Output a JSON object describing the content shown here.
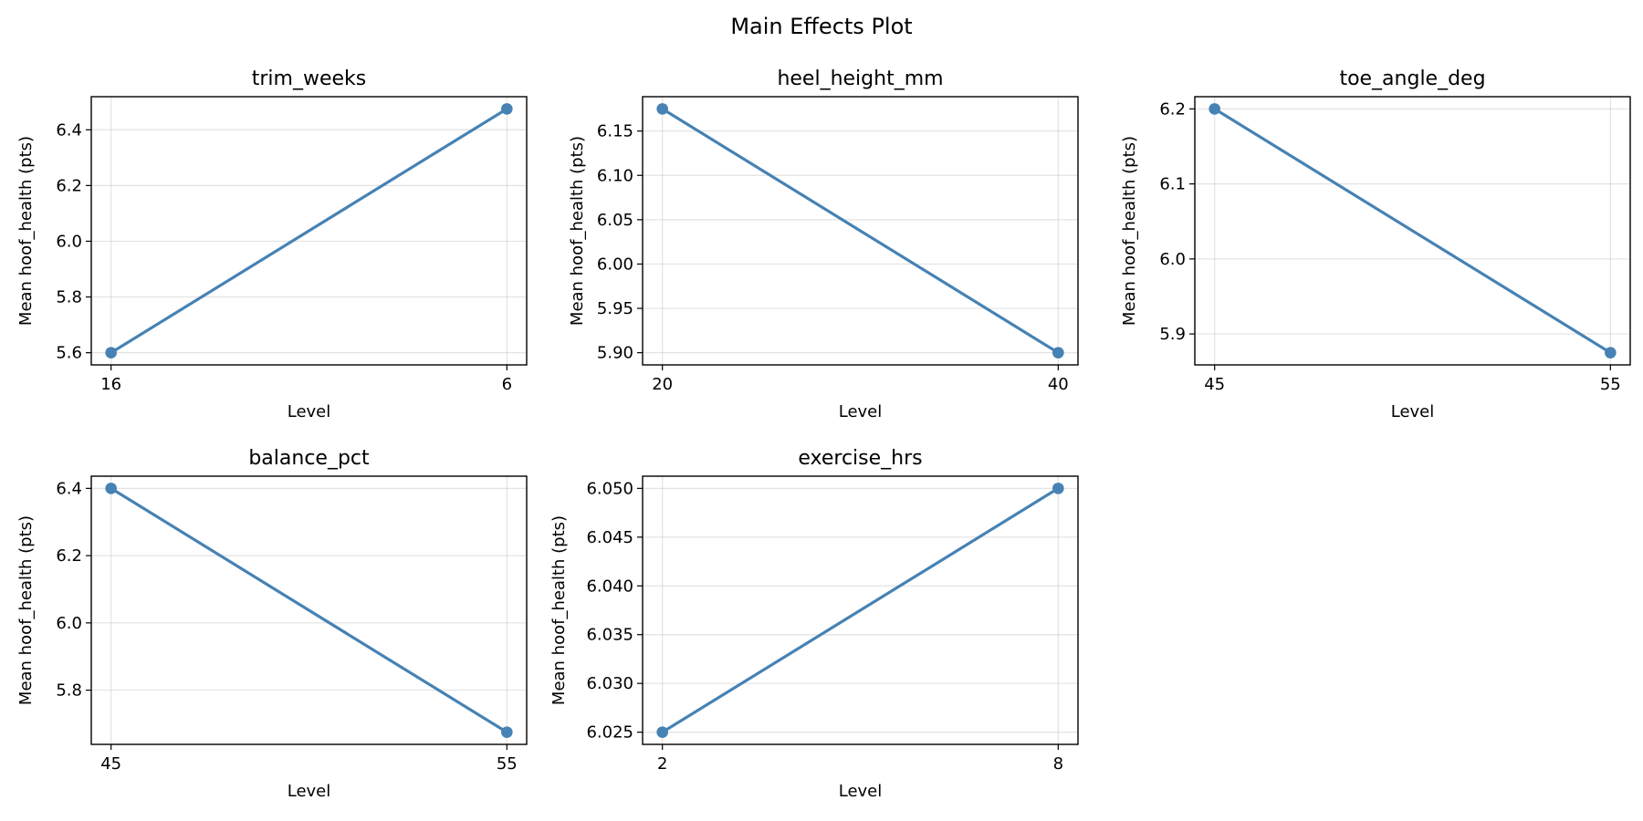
{
  "figure": {
    "title": "Main Effects Plot"
  },
  "style": {
    "series_color": "#4682b4"
  },
  "chart_data": [
    {
      "type": "line",
      "title": "trim_weeks",
      "xlabel": "Level",
      "ylabel": "Mean hoof_health (pts)",
      "categories": [
        "16",
        "6"
      ],
      "values": [
        5.6,
        6.475
      ],
      "yticks": [
        "5.6",
        "5.8",
        "6.0",
        "6.2",
        "6.4"
      ],
      "grid": true
    },
    {
      "type": "line",
      "title": "heel_height_mm",
      "xlabel": "Level",
      "ylabel": "Mean hoof_health (pts)",
      "categories": [
        "20",
        "40"
      ],
      "values": [
        6.175,
        5.9
      ],
      "yticks": [
        "5.90",
        "5.95",
        "6.00",
        "6.05",
        "6.10",
        "6.15"
      ],
      "grid": true
    },
    {
      "type": "line",
      "title": "toe_angle_deg",
      "xlabel": "Level",
      "ylabel": "Mean hoof_health (pts)",
      "categories": [
        "45",
        "55"
      ],
      "values": [
        6.2,
        5.875
      ],
      "yticks": [
        "5.9",
        "6.0",
        "6.1",
        "6.2"
      ],
      "grid": true
    },
    {
      "type": "line",
      "title": "balance_pct",
      "xlabel": "Level",
      "ylabel": "Mean hoof_health (pts)",
      "categories": [
        "45",
        "55"
      ],
      "values": [
        6.4,
        5.675
      ],
      "yticks": [
        "5.8",
        "6.0",
        "6.2",
        "6.4"
      ],
      "grid": true
    },
    {
      "type": "line",
      "title": "exercise_hrs",
      "xlabel": "Level",
      "ylabel": "Mean hoof_health (pts)",
      "categories": [
        "2",
        "8"
      ],
      "values": [
        6.025,
        6.05
      ],
      "yticks": [
        "6.025",
        "6.030",
        "6.035",
        "6.040",
        "6.045",
        "6.050"
      ],
      "grid": true
    }
  ]
}
